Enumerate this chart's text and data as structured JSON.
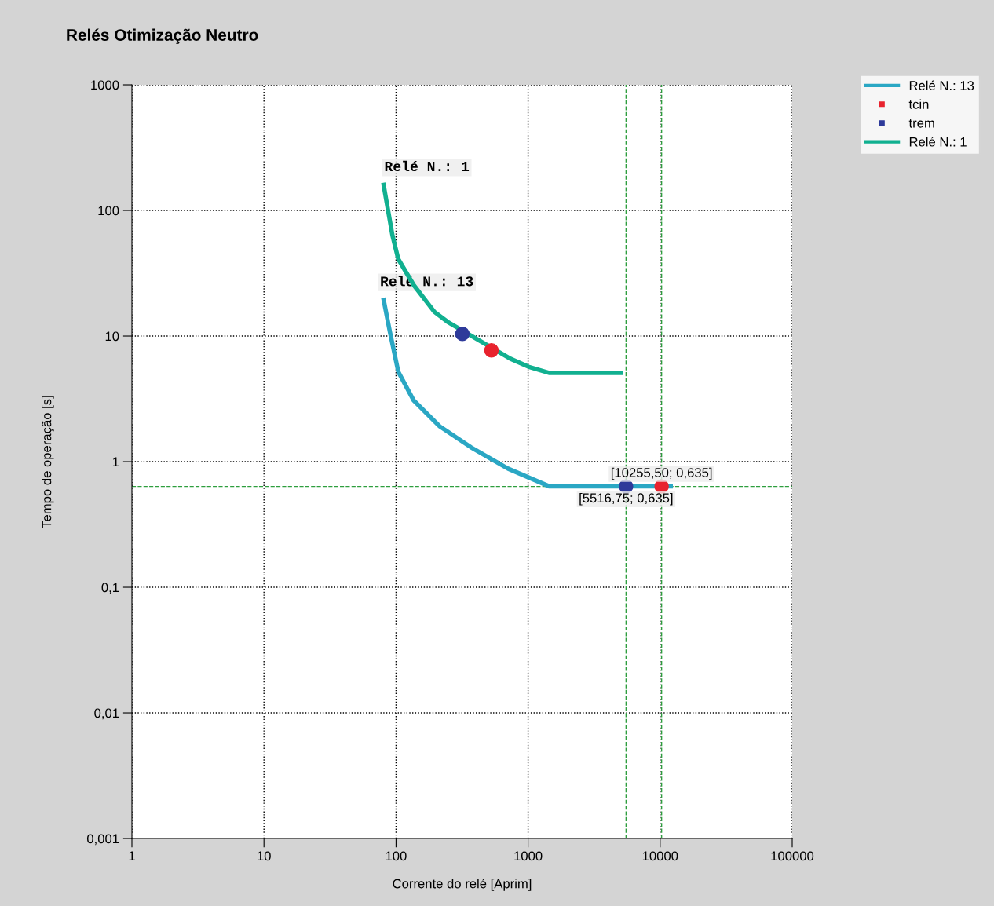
{
  "chart_data": {
    "type": "line",
    "title": "Relés Otimização Neutro",
    "xlabel": "Corrente do relé [Aprim]",
    "ylabel": "Tempo de operação [s]",
    "log": "xy",
    "grid": true,
    "legend": "top right",
    "xlim": [
      1,
      100000
    ],
    "xticks": [
      1,
      10,
      100,
      1000,
      10000,
      100000
    ],
    "ylim": [
      0.001,
      1000
    ],
    "yticks": [
      {
        "value": 0.001,
        "label": "0,001"
      },
      {
        "value": 0.01,
        "label": "0,01"
      },
      {
        "value": 0.1,
        "label": "0,1"
      },
      1,
      10,
      100,
      1000
    ],
    "series": [
      {
        "name": "Relé N.: 13",
        "color": "#2aa7c4",
        "x": [
          80,
          90,
          104,
          136,
          214,
          370,
          704,
          1455,
          12480
        ],
        "values": [
          20.2,
          10.7,
          5.2,
          3.07,
          1.91,
          1.3,
          0.88,
          0.635,
          0.635
        ]
      },
      {
        "name": "tcin",
        "type": "scatter",
        "marker": "circle",
        "color": "#e8232e",
        "x": [
          528,
          10255.5
        ],
        "values": [
          7.7,
          0.635
        ]
      },
      {
        "name": "trem",
        "type": "scatter",
        "marker": "circle",
        "color": "#2e3a9a",
        "x": [
          318,
          5516.75
        ],
        "values": [
          10.4,
          0.635
        ]
      },
      {
        "name": "Relé N.: 1",
        "color": "#11b090",
        "x": [
          80,
          94,
          104,
          136,
          195,
          245,
          734,
          1005,
          1455,
          5200
        ],
        "values": [
          166,
          63,
          41,
          25.5,
          15.6,
          13,
          6.6,
          5.7,
          5.08,
          5.08
        ]
      }
    ],
    "ref_lines": [
      {
        "axis": "y",
        "value": 0.635,
        "color": "#2e9e3e",
        "line_style": "dashed"
      },
      {
        "axis": "x",
        "value": 5516.75,
        "color": "#2e9e3e",
        "line_style": "dashed"
      },
      {
        "axis": "x",
        "value": 10255.5,
        "color": "#2e9e3e",
        "line_style": "dashed"
      }
    ],
    "annotations": [
      {
        "text": "Relé N.: 1",
        "x": 80,
        "y": 166
      },
      {
        "text": "Relé N.: 13",
        "x": 80,
        "y": 20.2
      },
      {
        "text": "[10255,50; 0,635]",
        "x": 10255.5,
        "y": 0.635
      },
      {
        "text": "[5516,75; 0,635]",
        "x": 5516.75,
        "y": 0.635
      }
    ]
  }
}
